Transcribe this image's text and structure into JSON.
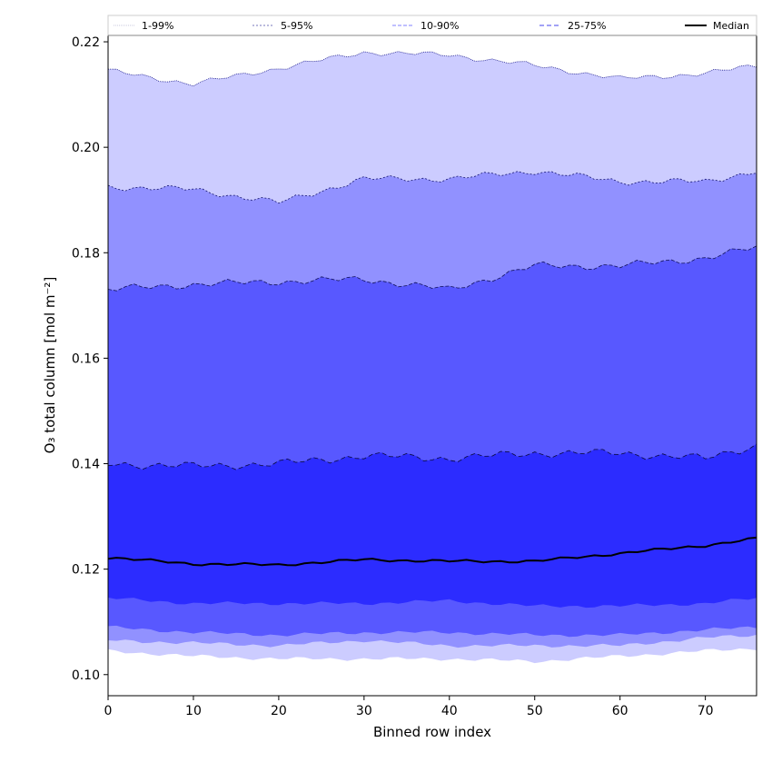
{
  "chart_data": {
    "type": "area",
    "xlabel": "Binned row index",
    "ylabel": "O₃ total column [mol m⁻²]",
    "xlim": [
      0,
      76
    ],
    "ylim": [
      0.096,
      0.225
    ],
    "x_ticks": [
      "0",
      "10",
      "20",
      "30",
      "40",
      "50",
      "60",
      "70"
    ],
    "y_ticks": [
      "0.10",
      "0.12",
      "0.14",
      "0.16",
      "0.18",
      "0.20",
      "0.22"
    ],
    "legend_position": "top",
    "x_knots": [
      0,
      10,
      20,
      30,
      40,
      50,
      60,
      70,
      76
    ],
    "bands": [
      {
        "name": "1-99%",
        "color": "#ccccff",
        "edge": "#1a1a8c",
        "edge_dash": "1,1",
        "lower": [
          0.1045,
          0.1035,
          0.103,
          0.103,
          0.103,
          0.1025,
          0.1035,
          0.1045,
          0.105
        ],
        "upper": [
          0.2145,
          0.212,
          0.215,
          0.218,
          0.2175,
          0.2155,
          0.213,
          0.214,
          0.2155
        ]
      },
      {
        "name": "5-95%",
        "color": "#9191ff",
        "edge": "#16166e",
        "edge_dash": "2,2",
        "lower": [
          0.1065,
          0.106,
          0.1055,
          0.1065,
          0.1055,
          0.1055,
          0.1055,
          0.107,
          0.1075
        ],
        "upper": [
          0.1925,
          0.192,
          0.1895,
          0.194,
          0.194,
          0.1955,
          0.1935,
          0.1935,
          0.1955
        ]
      },
      {
        "name": "10-90%",
        "color": "#5858ff",
        "edge": "#11115a",
        "edge_dash": "4,2",
        "lower": [
          0.109,
          0.108,
          0.1075,
          0.108,
          0.108,
          0.1075,
          0.1075,
          0.1085,
          0.109
        ],
        "upper": [
          0.173,
          0.174,
          0.1745,
          0.175,
          0.173,
          0.1775,
          0.1775,
          0.179,
          0.181
        ]
      },
      {
        "name": "25-75%",
        "color": "#2c2cff",
        "edge": "#0a0a3d",
        "edge_dash": "5,3",
        "lower": [
          0.1145,
          0.1135,
          0.1135,
          0.1135,
          0.114,
          0.113,
          0.113,
          0.1135,
          0.1145
        ],
        "upper": [
          0.14,
          0.1395,
          0.14,
          0.1415,
          0.141,
          0.142,
          0.142,
          0.141,
          0.1435
        ]
      }
    ],
    "median": {
      "name": "Median",
      "color": "#000000",
      "values": [
        0.1222,
        0.121,
        0.1208,
        0.1218,
        0.1215,
        0.1215,
        0.123,
        0.1245,
        0.1258
      ]
    }
  }
}
